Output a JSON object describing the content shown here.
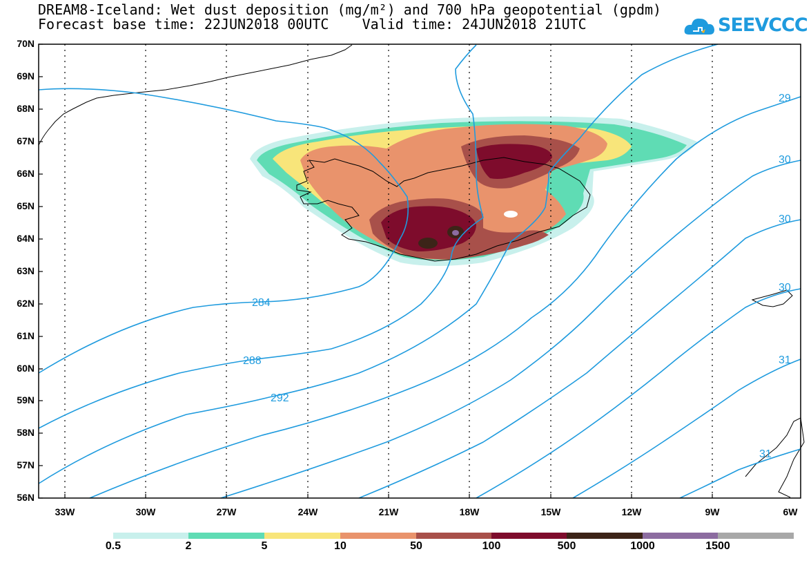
{
  "title": {
    "line1": "DREAM8-Iceland: Wet dust deposition (mg/m²) and 700 hPa geopotential (gpdm)",
    "line2": "Forecast base time: 22JUN2018 00UTC    Valid time: 24JUN2018 21UTC"
  },
  "logo": {
    "text": "SEEVCCC",
    "icon": "cloud-icon",
    "color": "#1f9bde"
  },
  "axes": {
    "lat_labels": [
      "70N",
      "69N",
      "68N",
      "67N",
      "66N",
      "65N",
      "64N",
      "63N",
      "62N",
      "61N",
      "60N",
      "59N",
      "58N",
      "57N",
      "56N"
    ],
    "lon_labels": [
      "33W",
      "30W",
      "27W",
      "24W",
      "21W",
      "18W",
      "15W",
      "12W",
      "9W",
      "6W"
    ],
    "lat_range": [
      56,
      70
    ],
    "lon_range": [
      -34.5,
      -6
    ]
  },
  "contours": {
    "color": "#1f9bde",
    "labels": [
      "284",
      "288",
      "292",
      "29",
      "30",
      "30",
      "30",
      "31",
      "31"
    ]
  },
  "legend": {
    "labels": [
      "0.5",
      "2",
      "5",
      "10",
      "50",
      "100",
      "500",
      "1000",
      "1500"
    ],
    "colors": [
      "#c8f0ec",
      "#5fdcb4",
      "#f8e57a",
      "#e9936c",
      "#a8504a",
      "#7e0c2c",
      "#3c2418",
      "#8c6ca0",
      "#a8a8a8"
    ]
  }
}
